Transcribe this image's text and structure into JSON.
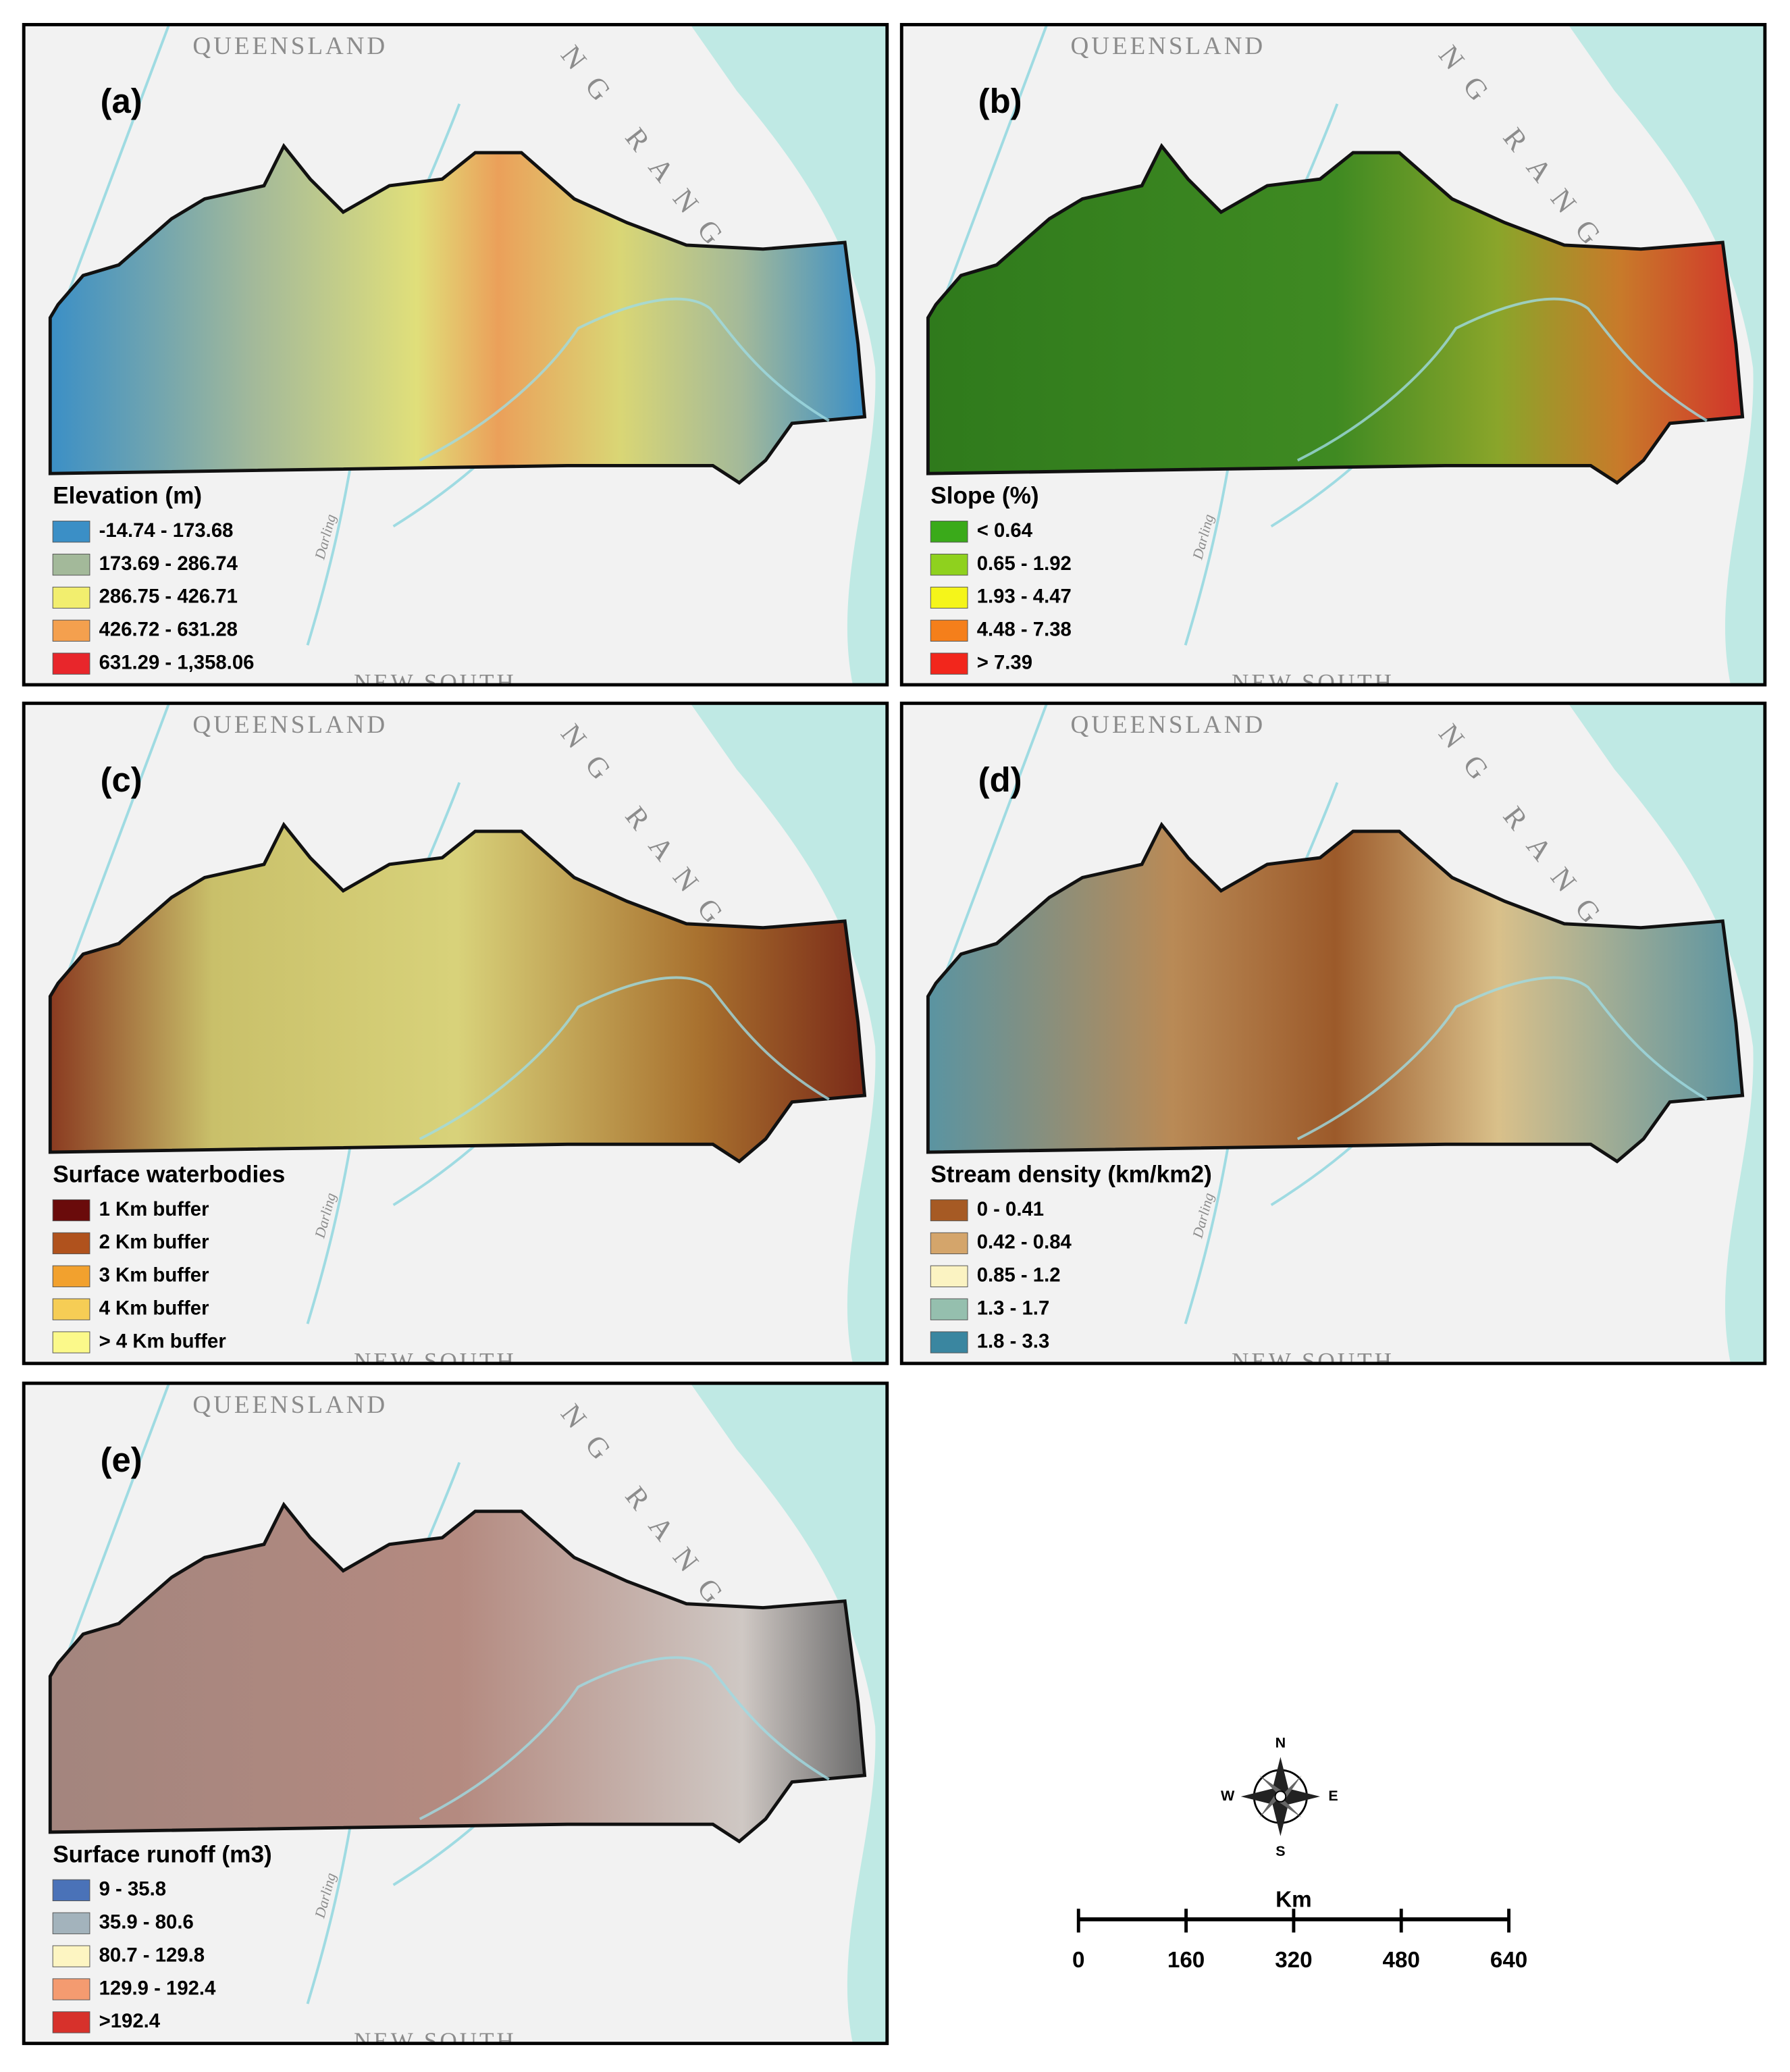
{
  "panels": [
    {
      "label": "(a)",
      "legend_title": "Elevation (m)",
      "legend": [
        {
          "label": "-14.74 - 173.68",
          "color": "#3b8fc6"
        },
        {
          "label": "173.69 - 286.74",
          "color": "#a3b99a"
        },
        {
          "label": "286.75 - 426.71",
          "color": "#f2ee6e"
        },
        {
          "label": "426.72 - 631.28",
          "color": "#f4a04e"
        },
        {
          "label": "631.29 - 1,358.06",
          "color": "#e8262b"
        }
      ]
    },
    {
      "label": "(b)",
      "legend_title": "Slope (%)",
      "legend": [
        {
          "label": "< 0.64",
          "color": "#3aaa1a"
        },
        {
          "label": "0.65 - 1.92",
          "color": "#8fd11e"
        },
        {
          "label": "1.93 - 4.47",
          "color": "#f5f51a"
        },
        {
          "label": "4.48 - 7.38",
          "color": "#f57f1b"
        },
        {
          "label": "> 7.39",
          "color": "#f2261c"
        }
      ]
    },
    {
      "label": "(c)",
      "legend_title": "Surface waterbodies",
      "legend": [
        {
          "label": "1 Km buffer",
          "color": "#6a0b0b"
        },
        {
          "label": "2 Km buffer",
          "color": "#b0521d"
        },
        {
          "label": "3 Km buffer",
          "color": "#f2a12e"
        },
        {
          "label": "4 Km buffer",
          "color": "#f6cd55"
        },
        {
          "label": "> 4 Km buffer",
          "color": "#fbf98a"
        }
      ]
    },
    {
      "label": "(d)",
      "legend_title": "Stream density (km/km2)",
      "legend": [
        {
          "label": "0 - 0.41",
          "color": "#a65a24"
        },
        {
          "label": "0.42 - 0.84",
          "color": "#d4a56b"
        },
        {
          "label": "0.85 - 1.2",
          "color": "#fbf3c2"
        },
        {
          "label": "1.3 - 1.7",
          "color": "#95bfae"
        },
        {
          "label": "1.8 - 3.3",
          "color": "#3a86a0"
        }
      ]
    },
    {
      "label": "(e)",
      "legend_title": "Surface runoff (m3)",
      "legend": [
        {
          "label": "9 - 35.8",
          "color": "#4a72b8"
        },
        {
          "label": "35.9 - 80.6",
          "color": "#a3b3bc"
        },
        {
          "label": "80.7 - 129.8",
          "color": "#fdf5c2"
        },
        {
          "label": "129.9 - 192.4",
          "color": "#f49b70"
        },
        {
          "label": ">192.4",
          "color": "#d7312b"
        }
      ]
    }
  ],
  "map_labels": {
    "state_north": "QUEENSLAND",
    "range": "NG RANG",
    "state_south": "NEW SOUTH",
    "river": "Darling"
  },
  "compass": {
    "n": "N",
    "s": "S",
    "e": "E",
    "w": "W"
  },
  "scale_bar": {
    "unit": "Km",
    "ticks": [
      0,
      160,
      320,
      480,
      640
    ]
  }
}
